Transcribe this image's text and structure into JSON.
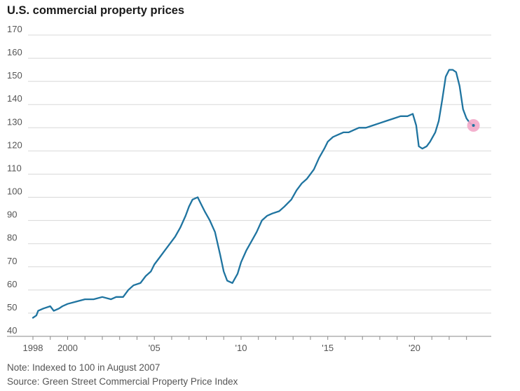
{
  "title": "U.S. commercial property prices",
  "note": "Note: Indexed to 100 in August 2007",
  "source": "Source: Green Street Commercial Property Price Index",
  "colors": {
    "line": "#1f74a0",
    "marker": "#f2a9c9",
    "grid": "#d8d8d8",
    "axis": "#888888"
  },
  "chart_data": {
    "type": "line",
    "title": "U.S. commercial property prices",
    "xlabel": "",
    "ylabel": "",
    "y_ticks": [
      "170",
      "160",
      "150",
      "140",
      "130",
      "120",
      "110",
      "100",
      "90",
      "80",
      "70",
      "60",
      "50",
      "40"
    ],
    "y_tick_values": [
      170,
      160,
      150,
      140,
      130,
      120,
      110,
      100,
      90,
      80,
      70,
      60,
      50,
      40
    ],
    "x_ticks": [
      {
        "label": "1998",
        "year": 1998
      },
      {
        "label": "2000",
        "year": 2000
      },
      {
        "label": "'05",
        "year": 2005
      },
      {
        "label": "'10",
        "year": 2010
      },
      {
        "label": "'15",
        "year": 2015
      },
      {
        "label": "'20",
        "year": 2020
      }
    ],
    "xlim": [
      1998,
      2023.7
    ],
    "ylim": [
      40,
      170
    ],
    "grid": true,
    "last_point_marker": true,
    "series": [
      {
        "x": [
          1998.0,
          1998.2,
          1998.3,
          1998.6,
          1999.0,
          1999.2,
          1999.5,
          1999.7,
          2000.0,
          2000.5,
          2001.0,
          2001.5,
          2002.0,
          2002.5,
          2002.8,
          2003.2,
          2003.5,
          2003.8,
          2004.2,
          2004.5,
          2004.8,
          2005.0,
          2005.3,
          2005.6,
          2005.9,
          2006.2,
          2006.5,
          2006.8,
          2007.0,
          2007.2,
          2007.5,
          2007.7,
          2007.9,
          2008.2,
          2008.5,
          2008.8,
          2009.0,
          2009.2,
          2009.5,
          2009.8,
          2010.0,
          2010.3,
          2010.6,
          2010.9,
          2011.2,
          2011.5,
          2011.8,
          2012.2,
          2012.5,
          2012.9,
          2013.2,
          2013.5,
          2013.8,
          2014.2,
          2014.5,
          2014.8,
          2015.0,
          2015.3,
          2015.6,
          2015.9,
          2016.2,
          2016.5,
          2016.8,
          2017.2,
          2017.6,
          2018.0,
          2018.4,
          2018.8,
          2019.2,
          2019.6,
          2019.9,
          2020.1,
          2020.25,
          2020.45,
          2020.7,
          2020.9,
          2021.2,
          2021.4,
          2021.6,
          2021.8,
          2022.0,
          2022.2,
          2022.4,
          2022.6,
          2022.8,
          2023.0,
          2023.2,
          2023.4
        ],
        "values": [
          48,
          49,
          51,
          52,
          53,
          51,
          52,
          53,
          54,
          55,
          56,
          56,
          57,
          56,
          57,
          57,
          60,
          62,
          63,
          66,
          68,
          71,
          74,
          77,
          80,
          83,
          87,
          92,
          96,
          99,
          100,
          97,
          94,
          90,
          85,
          75,
          68,
          64,
          63,
          67,
          72,
          77,
          81,
          85,
          90,
          92,
          93,
          94,
          96,
          99,
          103,
          106,
          108,
          112,
          117,
          121,
          124,
          126,
          127,
          128,
          128,
          129,
          130,
          130,
          131,
          132,
          133,
          134,
          135,
          135,
          136,
          131,
          122,
          121,
          122,
          124,
          128,
          133,
          142,
          152,
          155,
          155,
          154,
          148,
          138,
          134,
          132,
          131
        ]
      }
    ]
  }
}
